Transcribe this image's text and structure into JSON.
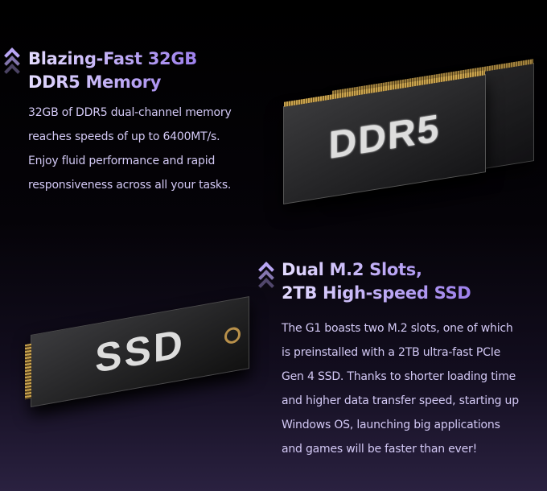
{
  "memory": {
    "heading_line1": "Blazing-Fast 32GB",
    "heading_line2": "DDR5 Memory",
    "body_lines": [
      "32GB of DDR5 dual-channel memory",
      "reaches speeds of up to 6400MT/s.",
      "Enjoy fluid performance and rapid",
      "responsiveness across all your tasks."
    ],
    "image_label": "DDR5",
    "icon": "double-chevron-up-icon"
  },
  "storage": {
    "heading_line1": "Dual M.2 Slots,",
    "heading_line2": "2TB High-speed SSD",
    "body_lines": [
      "The G1 boasts two M.2 slots, one of which",
      "is preinstalled with a 2TB ultra-fast PCIe",
      "Gen 4 SSD. Thanks to shorter loading time",
      "and higher data transfer speed, starting up",
      "Windows OS, launching big applications",
      "and games will be faster than ever!"
    ],
    "image_label": "SSD",
    "icon": "double-chevron-up-icon"
  },
  "colors": {
    "heading_start": "#e4dcff",
    "heading_end": "#9d80ec",
    "body_text": "#d3c9f5",
    "background": "#000000"
  }
}
